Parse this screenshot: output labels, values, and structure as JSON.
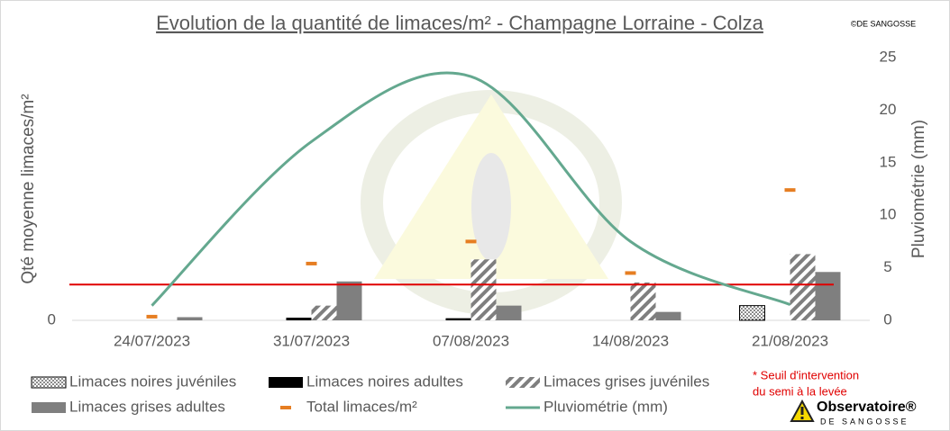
{
  "chart_data": {
    "type": "bar",
    "title": "Evolution de la quantité de limaces/m² - Champagne Lorraine - Colza",
    "copyright": "©DE SANGOSSE",
    "y_label": "Qté moyenne limaces/m²",
    "y2_label": "Pluviométrie (mm)",
    "categories": [
      "24/07/2023",
      "31/07/2023",
      "07/08/2023",
      "14/08/2023",
      "21/08/2023"
    ],
    "series": [
      {
        "name": "Limaces noires juvéniles",
        "type": "bar",
        "color": "#000000",
        "pattern": "dots",
        "values": [
          0,
          0,
          0,
          0,
          1.4
        ]
      },
      {
        "name": "Limaces noires adultes",
        "type": "bar",
        "color": "#000000",
        "pattern": "solid",
        "values": [
          0,
          0.25,
          0.2,
          0,
          0
        ]
      },
      {
        "name": "Limaces grises juvéniles",
        "type": "bar",
        "color": "#7f7f7f",
        "pattern": "hatch",
        "values": [
          0,
          1.4,
          5.8,
          3.6,
          6.3
        ]
      },
      {
        "name": "Limaces grises adultes",
        "type": "bar",
        "color": "#7f7f7f",
        "pattern": "solid",
        "values": [
          0.3,
          3.7,
          1.4,
          0.8,
          4.6
        ]
      },
      {
        "name": "Total limaces/m²",
        "type": "marker",
        "color": "#e67e22",
        "values": [
          0.35,
          5.4,
          7.5,
          4.5,
          12.4
        ]
      },
      {
        "name": "Pluviométrie (mm)",
        "type": "line",
        "axis": "y2",
        "color": "#64a88f",
        "values": [
          1.4,
          17,
          23.2,
          7.5,
          1.5
        ]
      }
    ],
    "threshold": {
      "value": 3.4,
      "color": "#e00000",
      "label": [
        "* Seuil d'intervention",
        "du semi à la levée"
      ]
    },
    "ylim": [
      0,
      25
    ],
    "yticks": [
      0
    ],
    "y2lim": [
      0,
      25
    ],
    "y2ticks": [
      0,
      5,
      10,
      15,
      20,
      25
    ],
    "logo": {
      "name": "Observatoire®",
      "sub": "DE SANGOSSE"
    }
  }
}
